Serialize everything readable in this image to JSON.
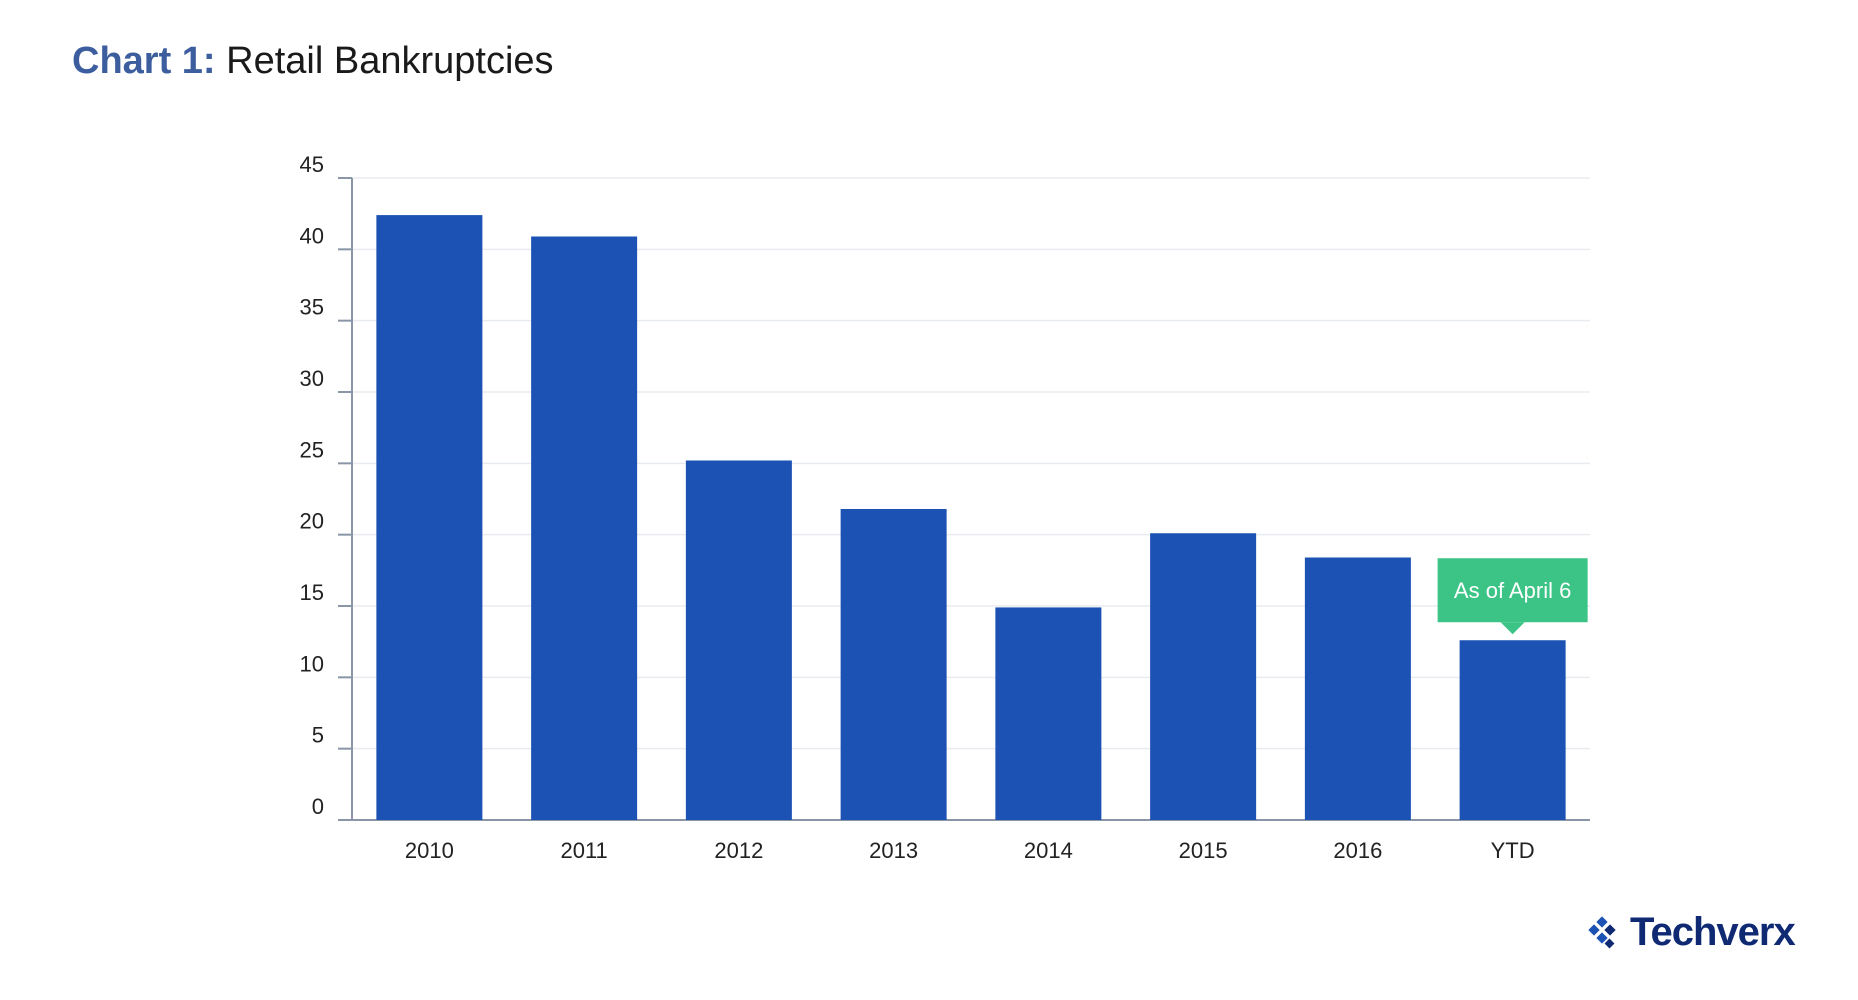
{
  "title": {
    "prefix": "Chart 1:",
    "main": "Retail Bankruptcies"
  },
  "chart_data": {
    "type": "bar",
    "title": "Chart 1: Retail Bankruptcies",
    "categories": [
      "2010",
      "2011",
      "2012",
      "2013",
      "2014",
      "2015",
      "2016",
      "YTD"
    ],
    "values": [
      42.4,
      40.9,
      25.2,
      21.8,
      14.9,
      20.1,
      18.4,
      12.6
    ],
    "ylim": [
      0,
      45
    ],
    "yticks": [
      0,
      5,
      10,
      15,
      20,
      25,
      30,
      35,
      40,
      45
    ],
    "grid": true,
    "colors": {
      "bar": "#1c52b4",
      "callout": "#3cc486",
      "axis": "#8a96a8",
      "grid": "#e8ecf0"
    },
    "annotations": [
      {
        "category": "YTD",
        "text": "As of April 6"
      }
    ]
  },
  "logo": {
    "text": "Techverx",
    "icon": "diamond-logo-icon"
  }
}
